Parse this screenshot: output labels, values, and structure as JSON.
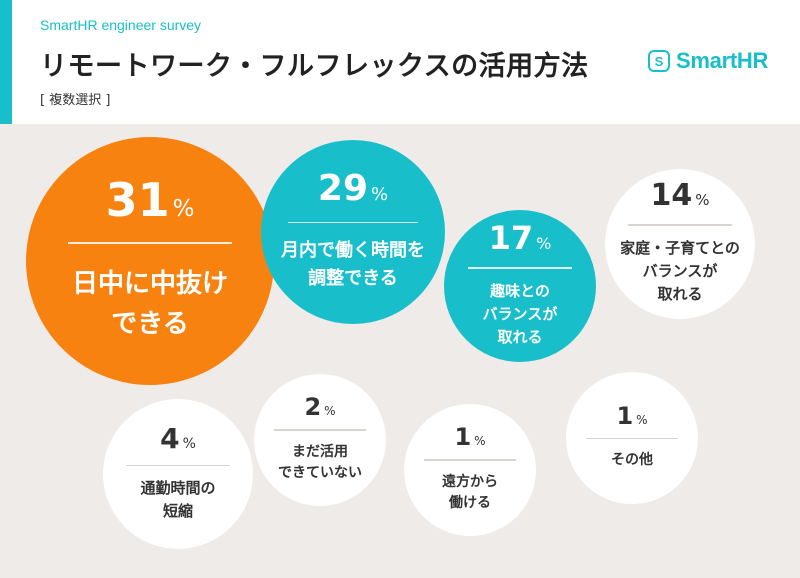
{
  "header": {
    "eyebrow": "SmartHR engineer survey",
    "title": "リモートワーク・フルフレックスの活用方法",
    "subtitle": "[ 複数選択 ]",
    "logo_mark": "S",
    "logo_text": "SmartHR"
  },
  "colors": {
    "orange": "#f7820f",
    "teal": "#18bfca",
    "white": "#ffffff",
    "panel": "#eeebe8",
    "text_dark": "#333333"
  },
  "percent_sign": "%",
  "chart_data": {
    "type": "bubble",
    "title": "リモートワーク・フルフレックスの活用方法",
    "subtitle": "[ 複数選択 ]",
    "unit": "%",
    "items": [
      {
        "label": "日中に中抜け\nできる",
        "value": 31,
        "color": "orange"
      },
      {
        "label": "月内で働く時間を\n調整できる",
        "value": 29,
        "color": "teal"
      },
      {
        "label": "趣味との\nバランスが\n取れる",
        "value": 17,
        "color": "teal"
      },
      {
        "label": "家庭・子育てとの\nバランスが\n取れる",
        "value": 14,
        "color": "white"
      },
      {
        "label": "通勤時間の\n短縮",
        "value": 4,
        "color": "white"
      },
      {
        "label": "まだ活用\nできていない",
        "value": 2,
        "color": "white"
      },
      {
        "label": "遠方から\n働ける",
        "value": 1,
        "color": "white"
      },
      {
        "label": "その他",
        "value": 1,
        "color": "white"
      }
    ]
  }
}
